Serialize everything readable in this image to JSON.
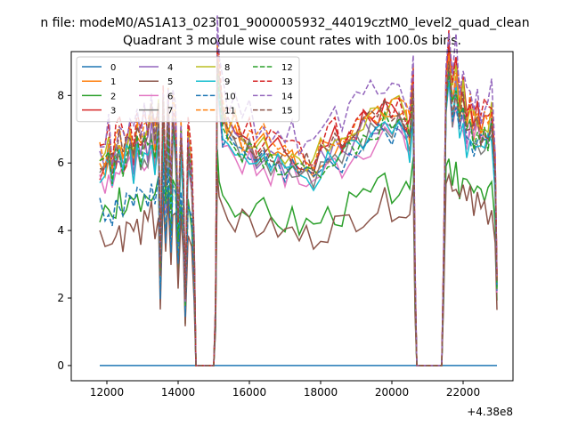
{
  "figure": {
    "suptitle": "n file: modeM0/AS1A13_023T01_9000005932_44019cztM0_level2_quad_clean",
    "offset_text": "+4.38e8"
  },
  "colors": [
    "#1f77b4",
    "#ff7f0e",
    "#2ca02c",
    "#d62728",
    "#9467bd",
    "#8c564b",
    "#e377c2",
    "#7f7f7f",
    "#bcbd22",
    "#17becf",
    "#1f77b4",
    "#ff7f0e",
    "#2ca02c",
    "#d62728",
    "#9467bd",
    "#8c564b"
  ],
  "chart_data": {
    "type": "line",
    "title": "Quadrant 3 module wise count rates with 100.0s bins.",
    "xlabel": "",
    "ylabel": "",
    "xlim": [
      11000,
      23400
    ],
    "ylim": [
      -0.45,
      9.3
    ],
    "xticks": [
      12000,
      14000,
      16000,
      18000,
      20000,
      22000
    ],
    "xtick_labels": [
      "12000",
      "14000",
      "16000",
      "18000",
      "20000",
      "22000"
    ],
    "yticks": [
      0,
      2,
      4,
      6,
      8
    ],
    "ytick_labels": [
      "0",
      "2",
      "4",
      "6",
      "8"
    ],
    "grid": false,
    "legend_position": "upper-left",
    "legend_columns": 4,
    "series_linestyle_note": "modules 0-9 solid, 10-15 dashed",
    "segments": [
      {
        "x0": 11800,
        "x1": 14500,
        "shape": [
          [
            11800,
            1.0
          ],
          [
            11950,
            0.97
          ],
          [
            12050,
            1.05
          ],
          [
            12150,
            0.95
          ],
          [
            12250,
            1.02
          ],
          [
            12350,
            1.08
          ],
          [
            12450,
            1.0
          ],
          [
            12550,
            1.05
          ],
          [
            12650,
            1.12
          ],
          [
            12750,
            1.0
          ],
          [
            12850,
            1.08
          ],
          [
            12950,
            1.04
          ],
          [
            13050,
            1.1
          ],
          [
            13150,
            1.06
          ],
          [
            13250,
            1.18
          ],
          [
            13350,
            1.05
          ],
          [
            13450,
            1.2
          ],
          [
            13500,
            0.45
          ],
          [
            13580,
            1.25
          ],
          [
            13650,
            0.85
          ],
          [
            13720,
            1.22
          ],
          [
            13800,
            0.8
          ],
          [
            13850,
            1.2
          ],
          [
            13930,
            1.12
          ],
          [
            14000,
            0.65
          ],
          [
            14080,
            1.1
          ],
          [
            14150,
            0.85
          ],
          [
            14200,
            0.3
          ],
          [
            14280,
            1.05
          ],
          [
            14380,
            0.9
          ],
          [
            14450,
            0.55
          ],
          [
            14500,
            0.0
          ]
        ]
      },
      {
        "x0": 15000,
        "x1": 20800,
        "shape": [
          [
            15000,
            0.0
          ],
          [
            15050,
            0.25
          ],
          [
            15100,
            1.38
          ],
          [
            15150,
            1.28
          ],
          [
            15250,
            1.12
          ],
          [
            15400,
            1.08
          ],
          [
            15600,
            1.05
          ],
          [
            15800,
            1.0
          ],
          [
            16000,
            1.02
          ],
          [
            16200,
            0.96
          ],
          [
            16400,
            1.0
          ],
          [
            16600,
            0.95
          ],
          [
            16800,
            0.96
          ],
          [
            17000,
            0.92
          ],
          [
            17200,
            0.95
          ],
          [
            17400,
            0.9
          ],
          [
            17600,
            0.92
          ],
          [
            17800,
            0.9
          ],
          [
            18000,
            0.95
          ],
          [
            18200,
            0.97
          ],
          [
            18400,
            1.0
          ],
          [
            18600,
            0.98
          ],
          [
            18800,
            1.03
          ],
          [
            19000,
            1.05
          ],
          [
            19200,
            1.08
          ],
          [
            19400,
            1.1
          ],
          [
            19600,
            1.12
          ],
          [
            19800,
            1.15
          ],
          [
            20000,
            1.12
          ],
          [
            20200,
            1.15
          ],
          [
            20400,
            1.1
          ],
          [
            20500,
            1.05
          ],
          [
            20600,
            1.25
          ],
          [
            20650,
            0.4
          ],
          [
            20700,
            0.0
          ]
        ]
      },
      {
        "x0": 21400,
        "x1": 22950,
        "shape": [
          [
            21400,
            0.0
          ],
          [
            21450,
            0.4
          ],
          [
            21520,
            1.15
          ],
          [
            21600,
            1.28
          ],
          [
            21700,
            1.1
          ],
          [
            21800,
            1.2
          ],
          [
            21900,
            1.05
          ],
          [
            22000,
            1.1
          ],
          [
            22100,
            1.0
          ],
          [
            22200,
            1.05
          ],
          [
            22300,
            0.98
          ],
          [
            22400,
            1.02
          ],
          [
            22500,
            0.96
          ],
          [
            22600,
            1.0
          ],
          [
            22700,
            0.98
          ],
          [
            22800,
            1.05
          ],
          [
            22900,
            0.8
          ],
          [
            22950,
            0.35
          ]
        ]
      }
    ],
    "series": [
      {
        "name": "0",
        "style": "solid",
        "zero": true,
        "level": [
          0,
          0,
          0
        ],
        "seed": 1
      },
      {
        "name": "1",
        "style": "solid",
        "zero": false,
        "level": [
          6.1,
          6.6,
          7.2
        ],
        "seed": 2
      },
      {
        "name": "2",
        "style": "solid",
        "zero": false,
        "level": [
          4.5,
          4.6,
          5.1
        ],
        "seed": 3
      },
      {
        "name": "3",
        "style": "solid",
        "zero": false,
        "level": [
          5.9,
          6.7,
          7.5
        ],
        "seed": 4
      },
      {
        "name": "4",
        "style": "solid",
        "zero": false,
        "level": [
          6.0,
          6.4,
          6.9
        ],
        "seed": 5
      },
      {
        "name": "5",
        "style": "solid",
        "zero": false,
        "level": [
          3.8,
          4.2,
          4.7
        ],
        "seed": 6
      },
      {
        "name": "6",
        "style": "solid",
        "zero": false,
        "level": [
          5.6,
          6.0,
          6.6
        ],
        "seed": 7
      },
      {
        "name": "7",
        "style": "solid",
        "zero": false,
        "level": [
          5.8,
          6.2,
          6.8
        ],
        "seed": 8
      },
      {
        "name": "8",
        "style": "solid",
        "zero": false,
        "level": [
          6.3,
          6.7,
          7.3
        ],
        "seed": 9
      },
      {
        "name": "9",
        "style": "solid",
        "zero": false,
        "level": [
          5.8,
          6.1,
          6.6
        ],
        "seed": 10
      },
      {
        "name": "10",
        "style": "dashed",
        "zero": false,
        "level": [
          4.6,
          6.1,
          6.7
        ],
        "seed": 11
      },
      {
        "name": "11",
        "style": "dashed",
        "zero": false,
        "level": [
          6.4,
          6.8,
          7.4
        ],
        "seed": 12
      },
      {
        "name": "12",
        "style": "dashed",
        "zero": false,
        "level": [
          6.0,
          6.3,
          6.8
        ],
        "seed": 13
      },
      {
        "name": "13",
        "style": "dashed",
        "zero": false,
        "level": [
          6.6,
          6.9,
          7.5
        ],
        "seed": 14
      },
      {
        "name": "14",
        "style": "dashed",
        "zero": false,
        "level": [
          6.7,
          7.3,
          7.9
        ],
        "seed": 15
      },
      {
        "name": "15",
        "style": "dashed",
        "zero": false,
        "level": [
          6.2,
          6.6,
          7.0
        ],
        "seed": 16
      }
    ]
  }
}
